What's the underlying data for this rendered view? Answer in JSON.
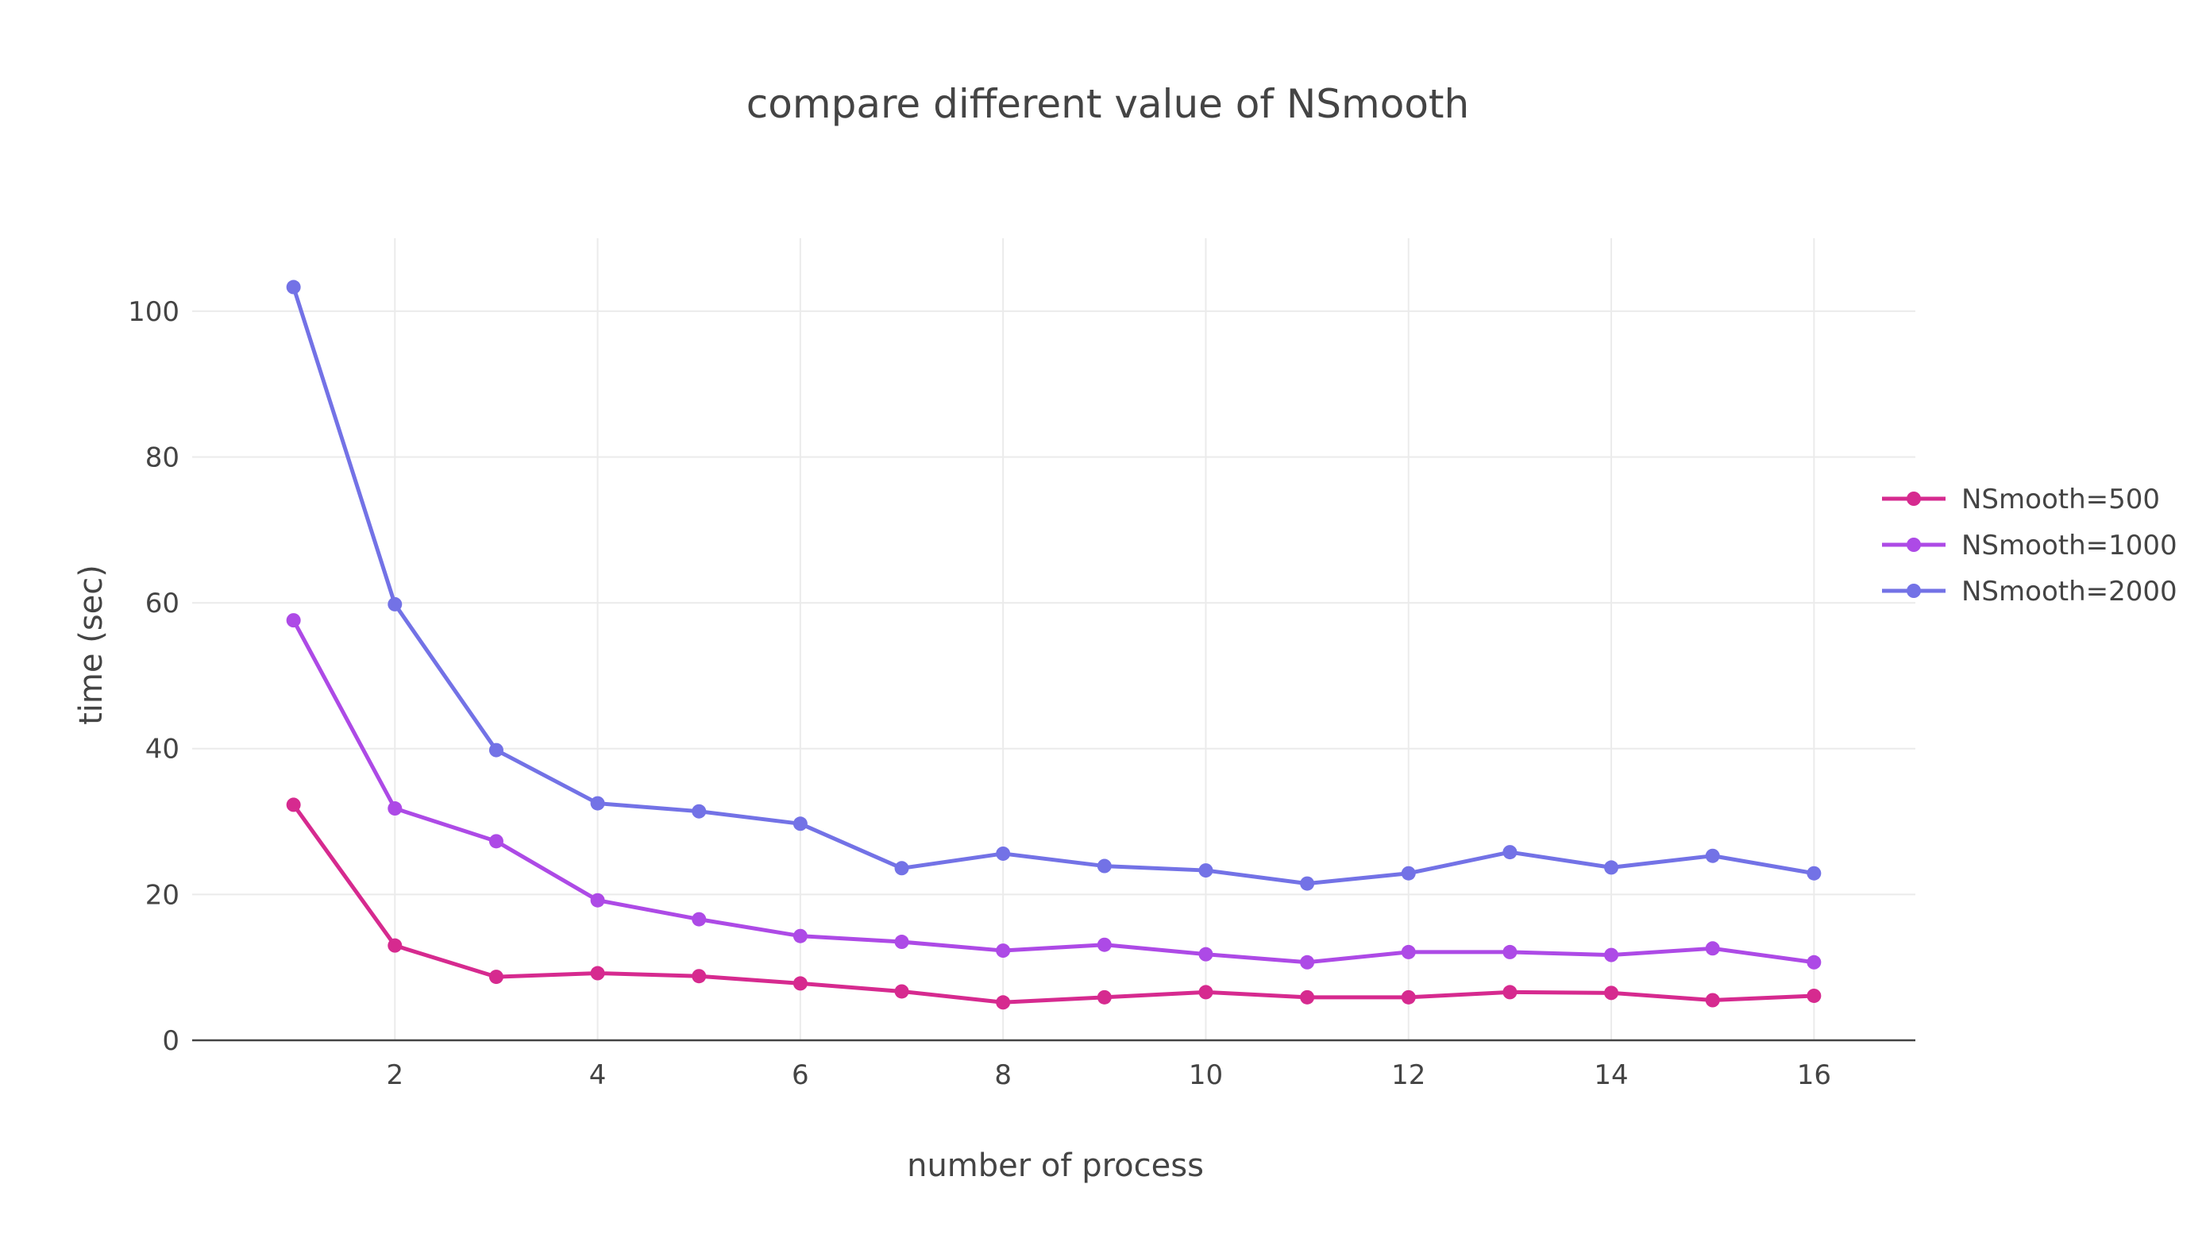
{
  "chart_data": {
    "type": "line",
    "title": "compare different value of NSmooth",
    "xlabel": "number of process",
    "ylabel": "time (sec)",
    "x": [
      1,
      2,
      3,
      4,
      5,
      6,
      7,
      8,
      9,
      10,
      11,
      12,
      13,
      14,
      15,
      16
    ],
    "xlim": [
      0,
      17
    ],
    "ylim": [
      0,
      110
    ],
    "xticks": [
      2,
      4,
      6,
      8,
      10,
      12,
      14,
      16
    ],
    "yticks": [
      0,
      20,
      40,
      60,
      80,
      100
    ],
    "grid": true,
    "legend_position": "right",
    "series": [
      {
        "name": "NSmooth=500",
        "color": "#d62a8f",
        "values": [
          32.3,
          13.0,
          8.7,
          9.2,
          8.8,
          7.8,
          6.7,
          5.2,
          5.9,
          6.6,
          5.9,
          5.9,
          6.6,
          6.5,
          5.5,
          6.1
        ]
      },
      {
        "name": "NSmooth=1000",
        "color": "#ad4ae6",
        "values": [
          57.6,
          31.8,
          27.3,
          19.2,
          16.6,
          14.3,
          13.5,
          12.3,
          13.1,
          11.8,
          10.7,
          12.1,
          12.1,
          11.7,
          12.6,
          10.7
        ]
      },
      {
        "name": "NSmooth=2000",
        "color": "#7372e6",
        "values": [
          103.3,
          59.8,
          39.8,
          32.5,
          31.4,
          29.7,
          23.6,
          25.6,
          23.9,
          23.3,
          21.5,
          22.9,
          25.8,
          23.7,
          25.3,
          22.9
        ]
      }
    ]
  }
}
